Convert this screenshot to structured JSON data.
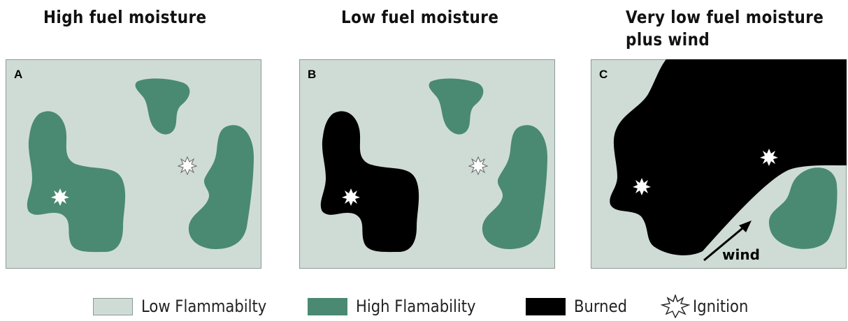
{
  "titles": {
    "a": "High fuel moisture",
    "b": "Low fuel moisture",
    "c_line1": "Very low fuel moisture",
    "c_line2": "plus wind"
  },
  "panels": {
    "a": {
      "letter": "A"
    },
    "b": {
      "letter": "B"
    },
    "c": {
      "letter": "C",
      "wind_label": "wind"
    }
  },
  "legend": {
    "low": "Low Flammabilty",
    "high": "High Flamability",
    "burned": "Burned",
    "ignition": "Ignition"
  },
  "colors": {
    "low_flammability": "#cfdcd6",
    "high_flammability": "#4a8a72",
    "burned": "#000000",
    "border": "#8a9a94"
  },
  "icons": {
    "ignition": "starburst-icon",
    "wind": "arrow-icon"
  }
}
